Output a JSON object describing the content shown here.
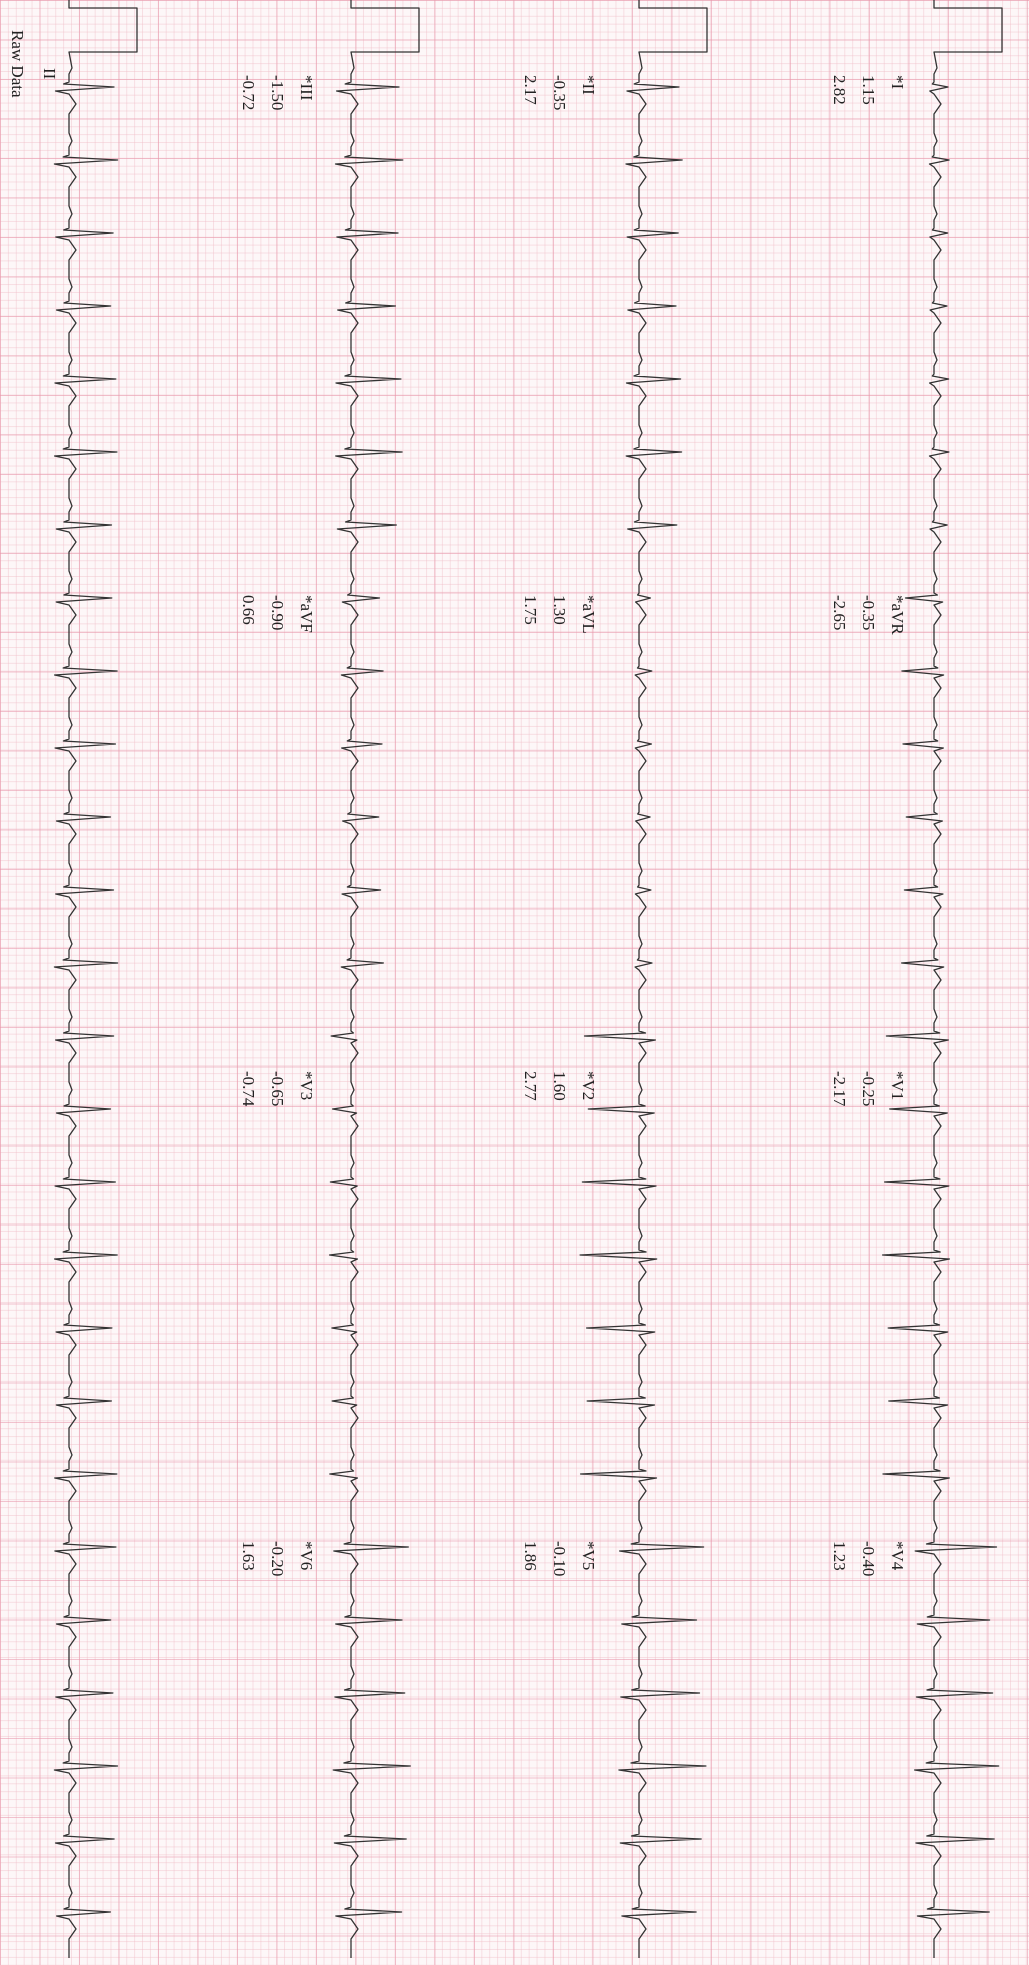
{
  "rows": [
    {
      "leads": [
        {
          "name": "*I",
          "values": [
            "1.15",
            "2.82"
          ]
        },
        {
          "name": "*aVR",
          "values": [
            "-0.35",
            "-2.65"
          ]
        },
        {
          "name": "*V1",
          "values": [
            "-0.25",
            "-2.17"
          ]
        },
        {
          "name": "*V4",
          "values": [
            "-0.40",
            "1.23"
          ]
        }
      ]
    },
    {
      "leads": [
        {
          "name": "*II",
          "values": [
            "-0.35",
            "2.17"
          ]
        },
        {
          "name": "*aVL",
          "values": [
            "1.30",
            "1.75"
          ]
        },
        {
          "name": "*V2",
          "values": [
            "1.60",
            "2.77"
          ]
        },
        {
          "name": "*V5",
          "values": [
            "-0.10",
            "1.86"
          ]
        }
      ]
    },
    {
      "leads": [
        {
          "name": "*III",
          "values": [
            "-1.50",
            "-0.72"
          ]
        },
        {
          "name": "*aVF",
          "values": [
            "-0.90",
            "0.66"
          ]
        },
        {
          "name": "*V3",
          "values": [
            "-0.65",
            "-0.74"
          ]
        },
        {
          "name": "*V6",
          "values": [
            "-0.20",
            "1.63"
          ]
        }
      ]
    }
  ],
  "rhythm": {
    "lead": "II",
    "label": "Raw Data"
  }
}
